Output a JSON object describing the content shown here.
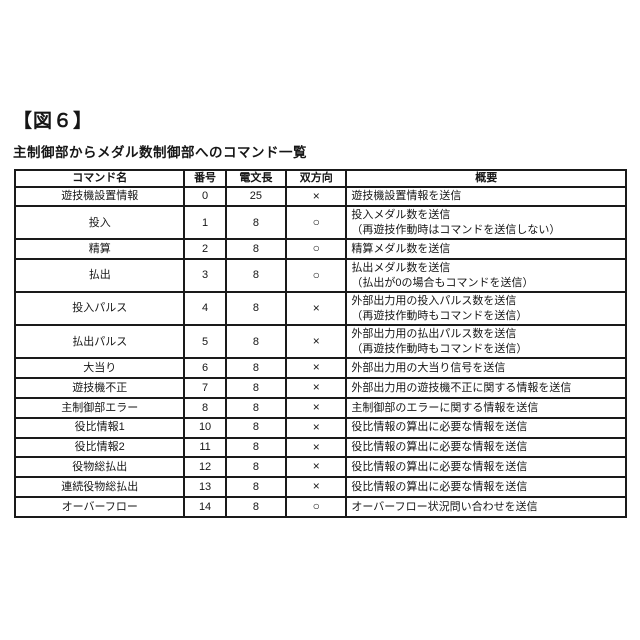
{
  "figure_label": "【図６】",
  "table_title": "主制御部からメダル数制御部へのコマンド一覧",
  "table": {
    "columns": [
      "コマンド名",
      "番号",
      "電文長",
      "双方向",
      "概要"
    ],
    "rows": [
      {
        "name": "遊技機設置情報",
        "number": "0",
        "length": "25",
        "bidirectional": "×",
        "summary": "遊技機設置情報を送信"
      },
      {
        "name": "投入",
        "number": "1",
        "length": "8",
        "bidirectional": "○",
        "summary": "投入メダル数を送信\n（再遊技作動時はコマンドを送信しない）"
      },
      {
        "name": "精算",
        "number": "2",
        "length": "8",
        "bidirectional": "○",
        "summary": "精算メダル数を送信"
      },
      {
        "name": "払出",
        "number": "3",
        "length": "8",
        "bidirectional": "○",
        "summary": "払出メダル数を送信\n（払出が0の場合もコマンドを送信）"
      },
      {
        "name": "投入パルス",
        "number": "4",
        "length": "8",
        "bidirectional": "×",
        "summary": "外部出力用の投入パルス数を送信\n（再遊技作動時もコマンドを送信）"
      },
      {
        "name": "払出パルス",
        "number": "5",
        "length": "8",
        "bidirectional": "×",
        "summary": "外部出力用の払出パルス数を送信\n（再遊技作動時もコマンドを送信）"
      },
      {
        "name": "大当り",
        "number": "6",
        "length": "8",
        "bidirectional": "×",
        "summary": "外部出力用の大当り信号を送信"
      },
      {
        "name": "遊技機不正",
        "number": "7",
        "length": "8",
        "bidirectional": "×",
        "summary": "外部出力用の遊技機不正に関する情報を送信"
      },
      {
        "name": "主制御部エラー",
        "number": "8",
        "length": "8",
        "bidirectional": "×",
        "summary": "主制御部のエラーに関する情報を送信"
      },
      {
        "name": "役比情報1",
        "number": "10",
        "length": "8",
        "bidirectional": "×",
        "summary": "役比情報の算出に必要な情報を送信"
      },
      {
        "name": "役比情報2",
        "number": "11",
        "length": "8",
        "bidirectional": "×",
        "summary": "役比情報の算出に必要な情報を送信"
      },
      {
        "name": "役物総払出",
        "number": "12",
        "length": "8",
        "bidirectional": "×",
        "summary": "役比情報の算出に必要な情報を送信"
      },
      {
        "name": "連続役物総払出",
        "number": "13",
        "length": "8",
        "bidirectional": "×",
        "summary": "役比情報の算出に必要な情報を送信"
      },
      {
        "name": "オーバーフロー",
        "number": "14",
        "length": "8",
        "bidirectional": "○",
        "summary": "オーバーフロー状況問い合わせを送信"
      }
    ]
  }
}
